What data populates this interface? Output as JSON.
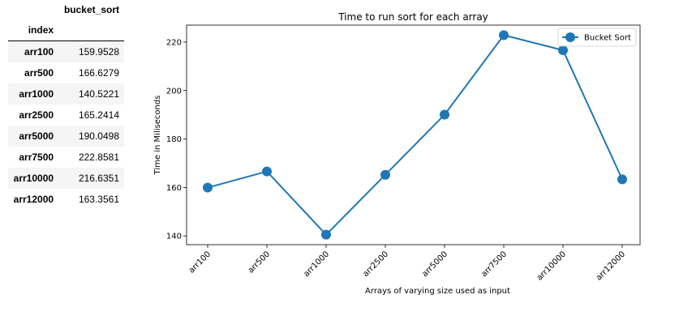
{
  "table": {
    "column_header": "bucket_sort",
    "index_header": "index",
    "rows": [
      {
        "index": "arr100",
        "value": "159.9528"
      },
      {
        "index": "arr500",
        "value": "166.6279"
      },
      {
        "index": "arr1000",
        "value": "140.5221"
      },
      {
        "index": "arr2500",
        "value": "165.2414"
      },
      {
        "index": "arr5000",
        "value": "190.0498"
      },
      {
        "index": "arr7500",
        "value": "222.8581"
      },
      {
        "index": "arr10000",
        "value": "216.6351"
      },
      {
        "index": "arr12000",
        "value": "163.3561"
      }
    ]
  },
  "chart_data": {
    "type": "line",
    "title": "Time to run sort for each array",
    "xlabel": "Arrays of varying size used as input",
    "ylabel": "Time in Miliseconds",
    "categories": [
      "arr100",
      "arr500",
      "arr1000",
      "arr2500",
      "arr5000",
      "arr7500",
      "arr10000",
      "arr12000"
    ],
    "series": [
      {
        "name": "Bucket Sort",
        "values": [
          159.9528,
          166.6279,
          140.5221,
          165.2414,
          190.0498,
          222.8581,
          216.6351,
          163.3561
        ],
        "color": "#1f77b4"
      }
    ],
    "ylim": [
      136.4,
      227.0
    ],
    "yticks": [
      140,
      160,
      180,
      200,
      220
    ],
    "grid": false,
    "legend_position": "top-right"
  }
}
